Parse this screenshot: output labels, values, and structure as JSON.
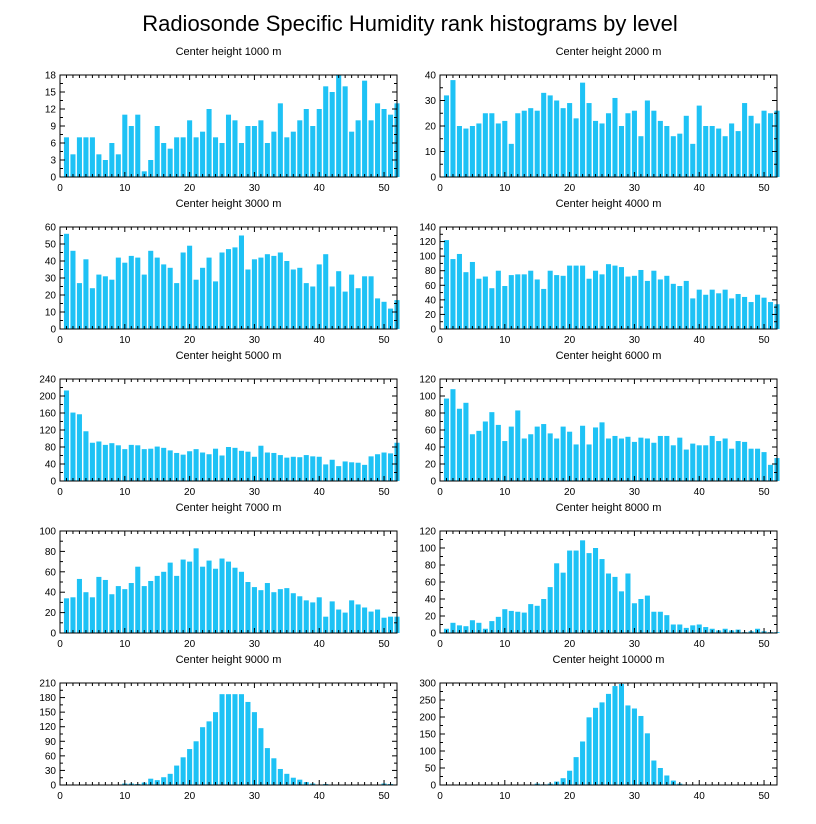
{
  "title": "Radiosonde Specific Humidity rank histograms by level",
  "chart_data": [
    {
      "type": "bar",
      "title": "Center height 1000 m",
      "xlim": [
        0,
        52
      ],
      "ylim": [
        0,
        18
      ],
      "xticks": [
        0,
        10,
        20,
        30,
        40,
        50
      ],
      "yticks": [
        0,
        3,
        6,
        9,
        12,
        15,
        18
      ],
      "values": [
        7,
        4,
        7,
        7,
        7,
        4,
        3,
        6,
        4,
        11,
        9,
        11,
        1,
        3,
        9,
        6,
        5,
        7,
        7,
        10,
        7,
        8,
        12,
        7,
        6,
        11,
        10,
        6,
        9,
        9,
        10,
        6,
        8,
        13,
        7,
        8,
        10,
        12,
        9,
        12,
        16,
        15,
        18,
        16,
        8,
        10,
        17,
        10,
        13,
        12,
        11,
        13
      ]
    },
    {
      "type": "bar",
      "title": "Center height 2000 m",
      "xlim": [
        0,
        52
      ],
      "ylim": [
        0,
        40
      ],
      "xticks": [
        0,
        10,
        20,
        30,
        40,
        50
      ],
      "yticks": [
        0,
        10,
        20,
        30,
        40
      ],
      "values": [
        32,
        38,
        20,
        19,
        20,
        21,
        25,
        25,
        21,
        22,
        13,
        25,
        26,
        27,
        26,
        33,
        32,
        30,
        27,
        29,
        23,
        37,
        29,
        22,
        21,
        25,
        31,
        20,
        25,
        26,
        16,
        30,
        26,
        22,
        20,
        16,
        17,
        24,
        13,
        28,
        20,
        20,
        19,
        16,
        21,
        18,
        29,
        24,
        21,
        26,
        25,
        26
      ]
    },
    {
      "type": "bar",
      "title": "Center height 3000 m",
      "xlim": [
        0,
        52
      ],
      "ylim": [
        0,
        60
      ],
      "xticks": [
        0,
        10,
        20,
        30,
        40,
        50
      ],
      "yticks": [
        0,
        10,
        20,
        30,
        40,
        50,
        60
      ],
      "values": [
        56,
        46,
        27,
        41,
        24,
        32,
        31,
        29,
        42,
        39,
        43,
        42,
        32,
        46,
        42,
        38,
        36,
        27,
        45,
        49,
        29,
        36,
        42,
        28,
        45,
        47,
        48,
        55,
        35,
        41,
        42,
        44,
        43,
        45,
        40,
        35,
        36,
        27,
        25,
        38,
        44,
        25,
        34,
        22,
        32,
        24,
        31,
        31,
        18,
        16,
        12,
        17
      ]
    },
    {
      "type": "bar",
      "title": "Center height 4000 m",
      "xlim": [
        0,
        52
      ],
      "ylim": [
        0,
        140
      ],
      "xticks": [
        0,
        10,
        20,
        30,
        40,
        50
      ],
      "yticks": [
        0,
        20,
        40,
        60,
        80,
        100,
        120,
        140
      ],
      "values": [
        122,
        96,
        103,
        78,
        92,
        69,
        72,
        56,
        80,
        59,
        74,
        75,
        75,
        80,
        68,
        55,
        80,
        74,
        73,
        87,
        87,
        87,
        69,
        80,
        75,
        89,
        87,
        85,
        72,
        73,
        81,
        66,
        80,
        68,
        73,
        62,
        59,
        66,
        42,
        54,
        47,
        54,
        49,
        54,
        42,
        48,
        44,
        37,
        47,
        43,
        37,
        34
      ]
    },
    {
      "type": "bar",
      "title": "Center height 5000 m",
      "xlim": [
        0,
        52
      ],
      "ylim": [
        0,
        240
      ],
      "xticks": [
        0,
        10,
        20,
        30,
        40,
        50
      ],
      "yticks": [
        0,
        40,
        80,
        120,
        160,
        200,
        240
      ],
      "values": [
        213,
        161,
        157,
        117,
        90,
        93,
        85,
        89,
        84,
        75,
        85,
        84,
        75,
        76,
        81,
        78,
        72,
        66,
        62,
        70,
        75,
        67,
        63,
        76,
        60,
        80,
        78,
        71,
        69,
        57,
        83,
        67,
        66,
        61,
        55,
        57,
        56,
        61,
        58,
        57,
        39,
        50,
        35,
        46,
        44,
        43,
        38,
        58,
        63,
        67,
        65,
        90
      ]
    },
    {
      "type": "bar",
      "title": "Center height 6000 m",
      "xlim": [
        0,
        52
      ],
      "ylim": [
        0,
        120
      ],
      "xticks": [
        0,
        10,
        20,
        30,
        40,
        50
      ],
      "yticks": [
        0,
        20,
        40,
        60,
        80,
        100,
        120
      ],
      "values": [
        97,
        108,
        85,
        92,
        55,
        59,
        70,
        81,
        66,
        47,
        64,
        83,
        50,
        55,
        64,
        67,
        56,
        50,
        64,
        58,
        43,
        65,
        43,
        63,
        69,
        50,
        53,
        50,
        52,
        46,
        51,
        50,
        45,
        53,
        53,
        42,
        51,
        37,
        44,
        42,
        42,
        53,
        47,
        50,
        38,
        47,
        46,
        38,
        38,
        34,
        19,
        27
      ]
    },
    {
      "type": "bar",
      "title": "Center height 7000 m",
      "xlim": [
        0,
        52
      ],
      "ylim": [
        0,
        100
      ],
      "xticks": [
        0,
        10,
        20,
        30,
        40,
        50
      ],
      "yticks": [
        0,
        20,
        40,
        60,
        80,
        100
      ],
      "values": [
        34,
        35,
        53,
        40,
        35,
        55,
        52,
        38,
        46,
        43,
        49,
        65,
        46,
        51,
        56,
        60,
        69,
        56,
        72,
        70,
        83,
        65,
        71,
        63,
        73,
        70,
        64,
        60,
        50,
        45,
        42,
        49,
        40,
        43,
        44,
        39,
        36,
        32,
        30,
        35,
        16,
        31,
        23,
        20,
        32,
        28,
        25,
        21,
        23,
        15,
        16,
        16
      ]
    },
    {
      "type": "bar",
      "title": "Center height 8000 m",
      "xlim": [
        0,
        52
      ],
      "ylim": [
        0,
        120
      ],
      "xticks": [
        0,
        10,
        20,
        30,
        40,
        50
      ],
      "yticks": [
        0,
        20,
        40,
        60,
        80,
        100,
        120
      ],
      "values": [
        5,
        12,
        9,
        8,
        15,
        12,
        5,
        14,
        19,
        28,
        26,
        25,
        24,
        34,
        32,
        40,
        54,
        82,
        71,
        97,
        97,
        109,
        94,
        100,
        87,
        70,
        66,
        49,
        70,
        35,
        40,
        44,
        25,
        25,
        21,
        10,
        10,
        6,
        9,
        10,
        7,
        5,
        3,
        5,
        3,
        4,
        1,
        2,
        5,
        2,
        1,
        1
      ]
    },
    {
      "type": "bar",
      "title": "Center height 9000 m",
      "xlim": [
        0,
        52
      ],
      "ylim": [
        0,
        210
      ],
      "xticks": [
        0,
        10,
        20,
        30,
        40,
        50
      ],
      "yticks": [
        0,
        30,
        60,
        90,
        120,
        150,
        180,
        210
      ],
      "values": [
        0,
        0,
        0,
        0,
        1,
        0,
        0,
        0,
        0,
        3,
        3,
        2,
        5,
        13,
        10,
        16,
        23,
        40,
        57,
        74,
        90,
        119,
        131,
        150,
        187,
        187,
        187,
        187,
        171,
        150,
        117,
        76,
        55,
        33,
        23,
        15,
        11,
        6,
        3,
        1,
        2,
        0,
        0,
        0,
        0,
        0,
        0,
        0,
        1,
        3,
        2,
        0
      ]
    },
    {
      "type": "bar",
      "title": "Center height 10000 m",
      "xlim": [
        0,
        52
      ],
      "ylim": [
        0,
        300
      ],
      "xticks": [
        0,
        10,
        20,
        30,
        40,
        50
      ],
      "yticks": [
        0,
        50,
        100,
        150,
        200,
        250,
        300
      ],
      "values": [
        0,
        0,
        0,
        0,
        0,
        0,
        0,
        0,
        0,
        0,
        0,
        1,
        1,
        0,
        4,
        2,
        4,
        10,
        20,
        42,
        82,
        128,
        199,
        227,
        243,
        268,
        291,
        297,
        234,
        225,
        203,
        152,
        72,
        50,
        28,
        13,
        4,
        1,
        1,
        0,
        1,
        0,
        0,
        0,
        0,
        0,
        0,
        0,
        0,
        0,
        0,
        0
      ]
    }
  ]
}
